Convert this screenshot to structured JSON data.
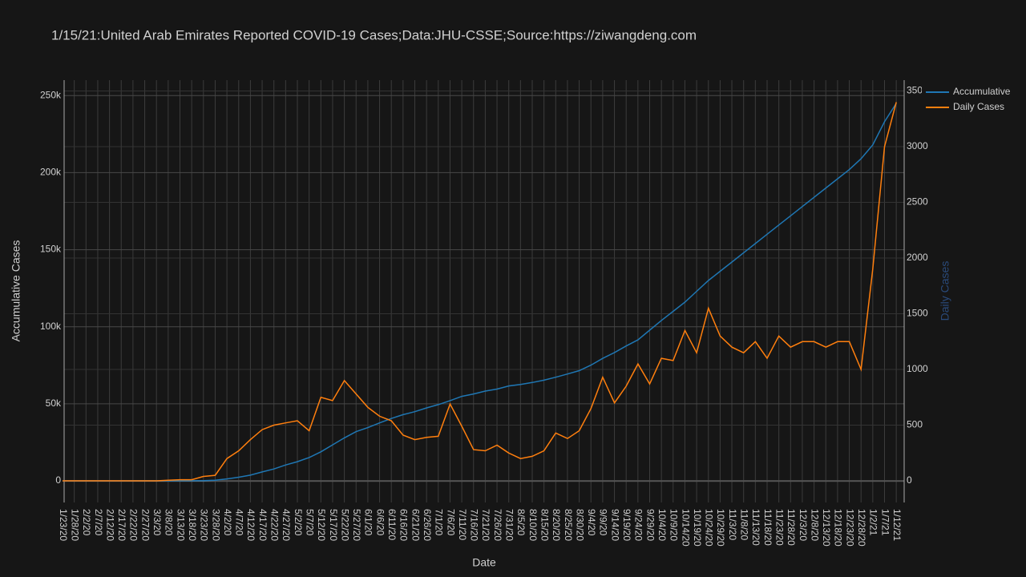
{
  "chart_data": {
    "type": "line",
    "title": "1/15/21:United Arab Emirates Reported COVID-19 Cases;Data:JHU-CSSE;Source:https://ziwangdeng.com",
    "x_label": "Date",
    "y_label": "Accumulative Cases",
    "y2_label": "Daily Cases",
    "categories": [
      "1/23/20",
      "1/28/20",
      "2/2/20",
      "2/7/20",
      "2/12/20",
      "2/17/20",
      "2/22/20",
      "2/27/20",
      "3/3/20",
      "3/8/20",
      "3/13/20",
      "3/18/20",
      "3/23/20",
      "3/28/20",
      "4/2/20",
      "4/7/20",
      "4/12/20",
      "4/17/20",
      "4/22/20",
      "4/27/20",
      "5/2/20",
      "5/7/20",
      "5/12/20",
      "5/17/20",
      "5/22/20",
      "5/27/20",
      "6/1/20",
      "6/6/20",
      "6/11/20",
      "6/16/20",
      "6/21/20",
      "6/26/20",
      "7/1/20",
      "7/6/20",
      "7/11/20",
      "7/16/20",
      "7/21/20",
      "7/26/20",
      "7/31/20",
      "8/5/20",
      "8/10/20",
      "8/15/20",
      "8/20/20",
      "8/25/20",
      "8/30/20",
      "9/4/20",
      "9/9/20",
      "9/14/20",
      "9/19/20",
      "9/24/20",
      "9/29/20",
      "10/4/20",
      "10/9/20",
      "10/14/20",
      "10/19/20",
      "10/24/20",
      "10/29/20",
      "11/3/20",
      "11/8/20",
      "11/13/20",
      "11/18/20",
      "11/23/20",
      "11/28/20",
      "12/3/20",
      "12/8/20",
      "12/13/20",
      "12/18/20",
      "12/23/20",
      "12/28/20",
      "1/2/21",
      "1/7/21",
      "1/12/21"
    ],
    "series": [
      {
        "name": "Accumulative",
        "color": "#1f77b4",
        "values": [
          0,
          0,
          5,
          7,
          8,
          9,
          13,
          19,
          27,
          45,
          80,
          113,
          153,
          405,
          1264,
          2359,
          3736,
          5825,
          7755,
          10349,
          12481,
          15192,
          18878,
          23358,
          27892,
          31969,
          34557,
          37642,
          40507,
          42982,
          44925,
          47360,
          49469,
          52068,
          54854,
          56422,
          58249,
          59546,
          61606,
          62525,
          63819,
          65341,
          67282,
          69328,
          71540,
          75098,
          79489,
          83297,
          87530,
          91469,
          97760,
          104078,
          110000,
          116000,
          123000,
          130000,
          136000,
          142000,
          148000,
          154000,
          160000,
          166000,
          172000,
          178000,
          184000,
          190000,
          196000,
          202000,
          209000,
          218000,
          233000,
          245000
        ]
      },
      {
        "name": "Daily Cases",
        "color": "#ff7f0e",
        "axis": "y2",
        "values": [
          0,
          0,
          0,
          0,
          0,
          0,
          0,
          0,
          0,
          5,
          10,
          10,
          40,
          50,
          200,
          270,
          370,
          460,
          500,
          520,
          540,
          450,
          750,
          720,
          900,
          780,
          660,
          580,
          540,
          410,
          370,
          390,
          400,
          690,
          490,
          280,
          270,
          320,
          250,
          200,
          220,
          270,
          430,
          380,
          450,
          650,
          930,
          700,
          850,
          1050,
          870,
          1100,
          1080,
          1350,
          1150,
          1550,
          1300,
          1200,
          1150,
          1250,
          1100,
          1300,
          1200,
          1250,
          1250,
          1200,
          1250,
          1250,
          1000,
          1900,
          3000,
          3400
        ]
      }
    ],
    "ylim": [
      -14000,
      260000
    ],
    "yticks": [
      0,
      {
        "value": 50000,
        "label": "50k"
      },
      {
        "value": 100000,
        "label": "100k"
      },
      {
        "value": 150000,
        "label": "150k"
      },
      {
        "value": 200000,
        "label": "200k"
      },
      {
        "value": 250000,
        "label": "250k"
      }
    ],
    "y2lim": [
      -194,
      3597
    ],
    "y2ticks": [
      0,
      500,
      1000,
      1500,
      2000,
      2500,
      3000,
      3500
    ],
    "grid": true,
    "legend": "top-right"
  }
}
